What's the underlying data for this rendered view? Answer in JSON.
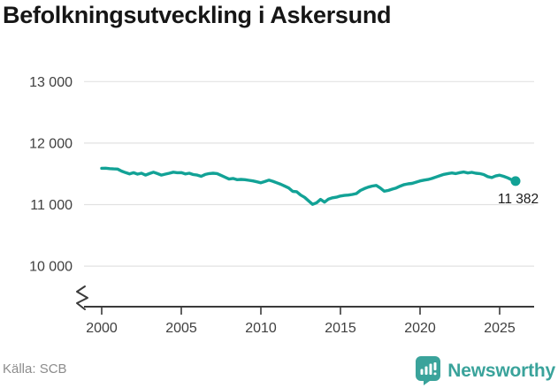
{
  "title": "Befolkningsutveckling i Askersund",
  "footer": {
    "source": "Källa: SCB",
    "brand": "Newsworthy",
    "brand_color": "#3aa39b",
    "logo_icon": "bar-chart-exclamation-badge-icon"
  },
  "chart_data": {
    "type": "line",
    "title": "Befolkningsutveckling i Askersund",
    "series_name": "Befolkning i Askersund",
    "x_label": "",
    "y_label": "",
    "x_start": 2000,
    "x_step": 0.25,
    "x_end": 2026,
    "xticks": [
      2000,
      2005,
      2010,
      2015,
      2020,
      2025
    ],
    "xtick_labels": [
      "2000",
      "2005",
      "2010",
      "2015",
      "2020",
      "2025"
    ],
    "yticks": [
      10000,
      11000,
      12000,
      13000
    ],
    "ytick_labels": [
      "10 000",
      "11 000",
      "12 000",
      "13 000"
    ],
    "ylim": [
      10000,
      13000
    ],
    "axis_break": true,
    "grid": "horizontal",
    "grid_color": "#e2e2e2",
    "axis_color": "#3a3a3a",
    "tick_text_color": "#404040",
    "line_color": "#12a296",
    "last_value": 11382,
    "last_value_label": "11 382",
    "last_value_label_color": "#1a1a1a",
    "values": [
      11590,
      11592,
      11585,
      11580,
      11578,
      11545,
      11520,
      11498,
      11518,
      11495,
      11510,
      11480,
      11505,
      11528,
      11505,
      11480,
      11495,
      11510,
      11528,
      11518,
      11520,
      11498,
      11510,
      11488,
      11480,
      11460,
      11490,
      11505,
      11510,
      11505,
      11475,
      11445,
      11415,
      11425,
      11405,
      11410,
      11405,
      11395,
      11385,
      11370,
      11355,
      11375,
      11398,
      11380,
      11355,
      11330,
      11300,
      11270,
      11215,
      11210,
      11155,
      11118,
      11060,
      11005,
      11030,
      11085,
      11040,
      11090,
      11110,
      11120,
      11140,
      11150,
      11155,
      11165,
      11180,
      11230,
      11260,
      11285,
      11302,
      11312,
      11270,
      11218,
      11230,
      11252,
      11270,
      11300,
      11325,
      11338,
      11345,
      11365,
      11385,
      11398,
      11408,
      11425,
      11448,
      11470,
      11492,
      11505,
      11515,
      11505,
      11520,
      11530,
      11515,
      11525,
      11510,
      11505,
      11488,
      11455,
      11440,
      11465,
      11478,
      11460,
      11435,
      11405,
      11382
    ]
  }
}
